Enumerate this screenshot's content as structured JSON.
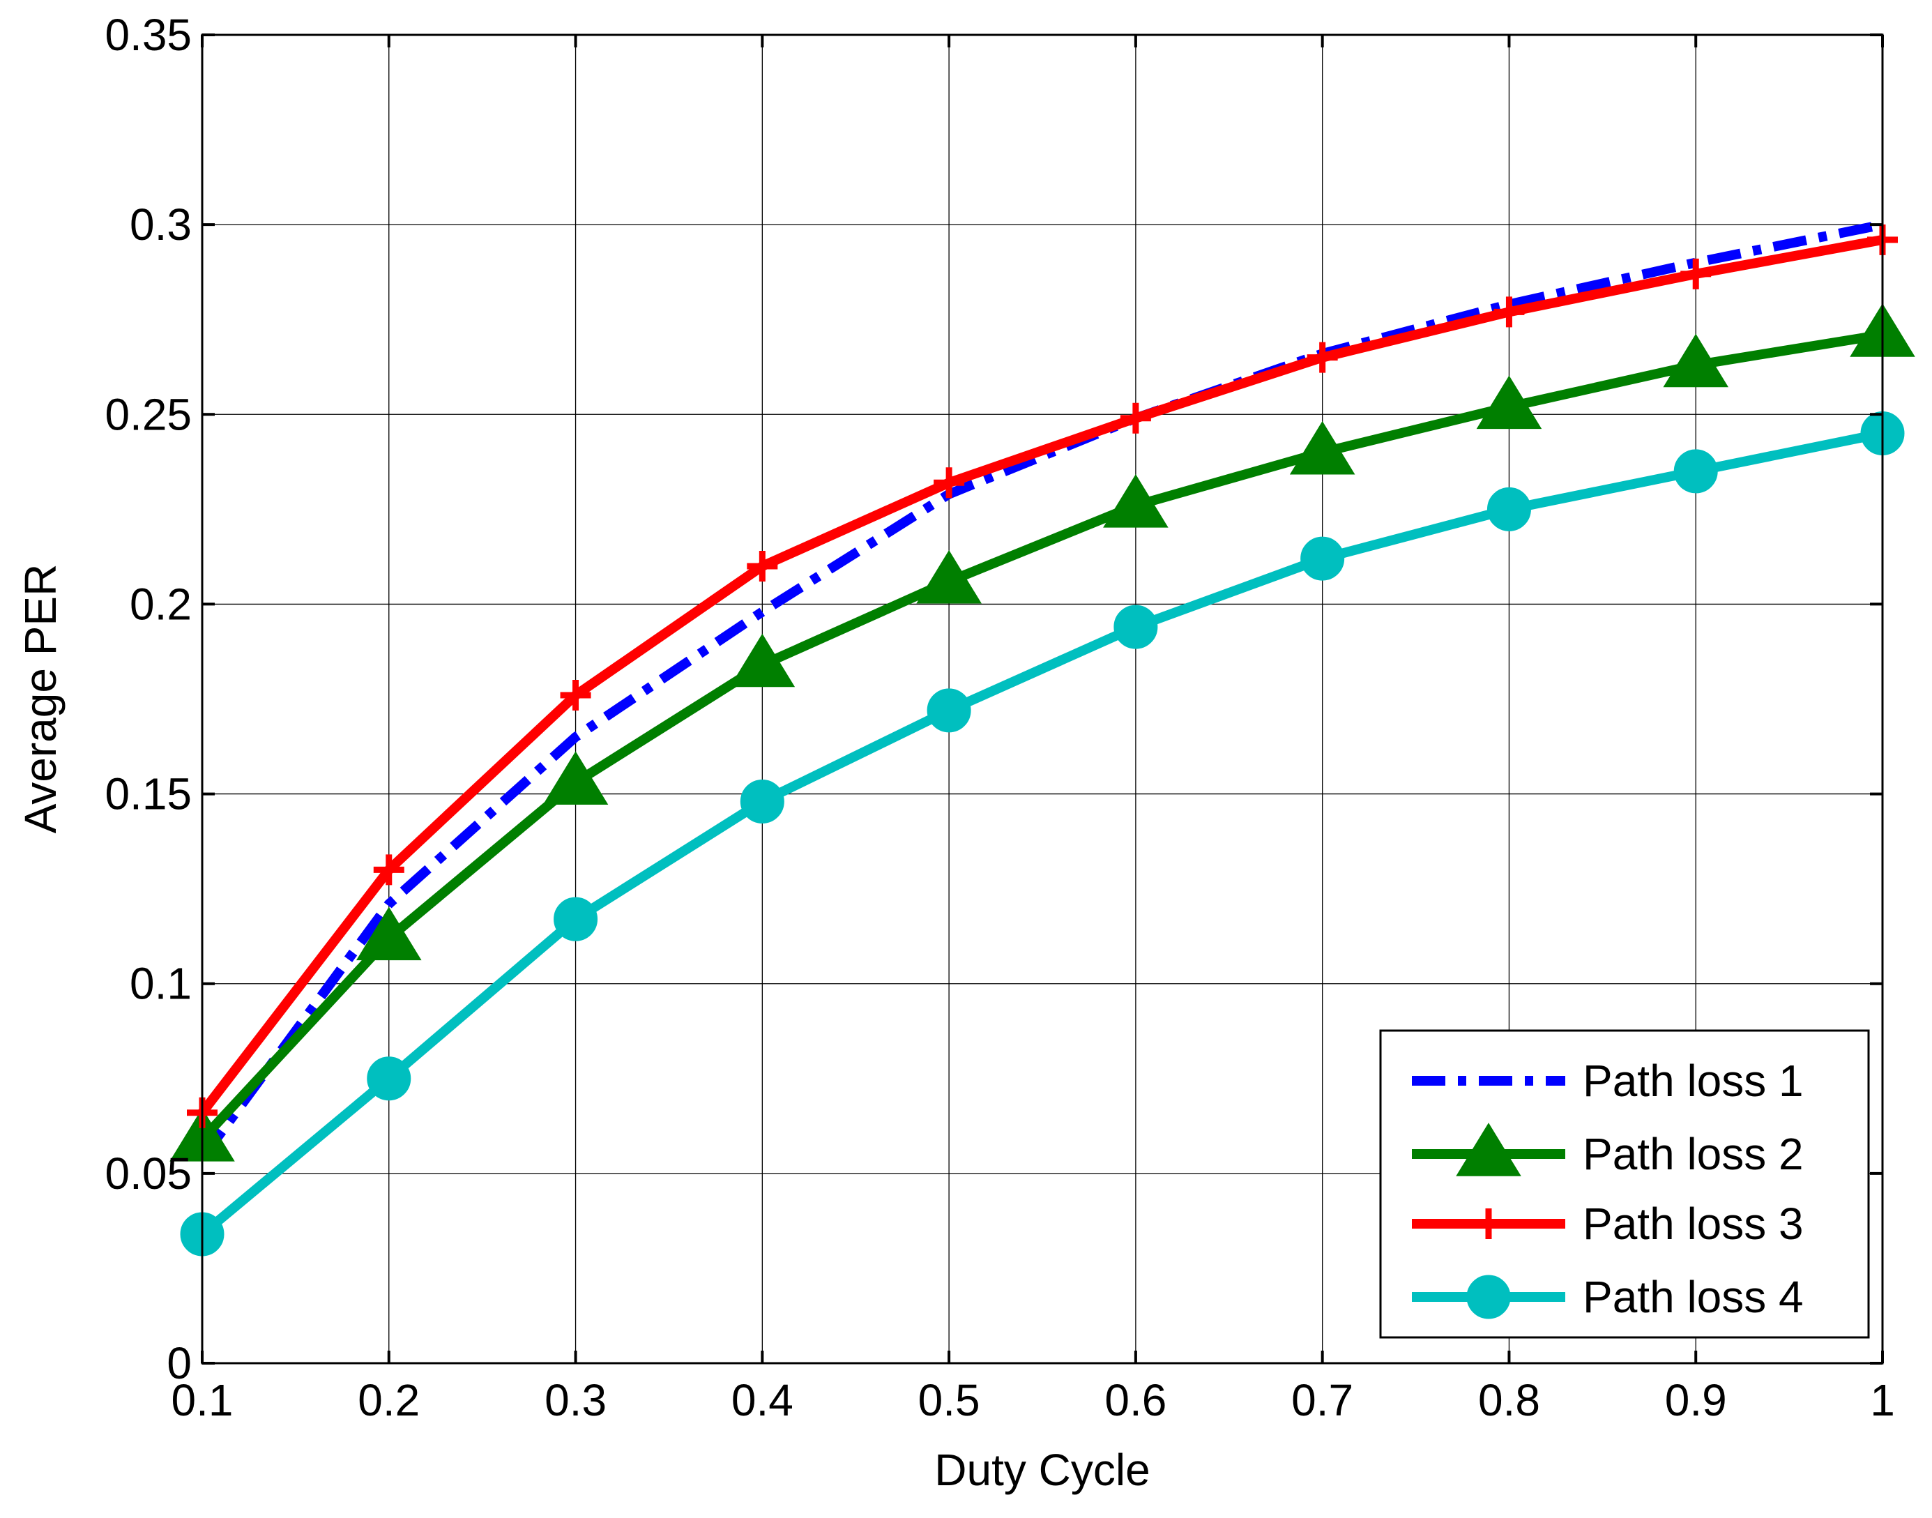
{
  "chart_data": {
    "type": "line",
    "title": "",
    "xlabel": "Duty Cycle",
    "ylabel": "Average PER",
    "xlim": [
      0.1,
      1
    ],
    "ylim": [
      0,
      0.35
    ],
    "grid": true,
    "legend_position": "bottom-right",
    "x": [
      0.1,
      0.2,
      0.3,
      0.4,
      0.5,
      0.6,
      0.7,
      0.8,
      0.9,
      1
    ],
    "xticks": [
      "0.1",
      "0.2",
      "0.3",
      "0.4",
      "0.5",
      "0.6",
      "0.7",
      "0.8",
      "0.9",
      "1"
    ],
    "yticks": [
      "0",
      "0.05",
      "0.1",
      "0.15",
      "0.2",
      "0.25",
      "0.3",
      "0.35"
    ],
    "series": [
      {
        "name": "Path loss 1",
        "color": "#0000ff",
        "line": "dash-dot",
        "marker": "none",
        "values": [
          0.054,
          0.121,
          0.165,
          0.198,
          0.229,
          0.249,
          0.266,
          0.279,
          0.29,
          0.3
        ]
      },
      {
        "name": "Path loss 2",
        "color": "#007f00",
        "line": "solid",
        "marker": "triangle",
        "values": [
          0.059,
          0.112,
          0.153,
          0.184,
          0.206,
          0.226,
          0.24,
          0.252,
          0.263,
          0.271
        ]
      },
      {
        "name": "Path loss 3",
        "color": "#ff0000",
        "line": "solid",
        "marker": "plus",
        "values": [
          0.066,
          0.13,
          0.176,
          0.21,
          0.232,
          0.249,
          0.265,
          0.277,
          0.287,
          0.296
        ]
      },
      {
        "name": "Path loss 4",
        "color": "#00bfbf",
        "line": "solid",
        "marker": "circle",
        "values": [
          0.034,
          0.075,
          0.117,
          0.148,
          0.172,
          0.194,
          0.212,
          0.225,
          0.235,
          0.245
        ]
      }
    ]
  }
}
